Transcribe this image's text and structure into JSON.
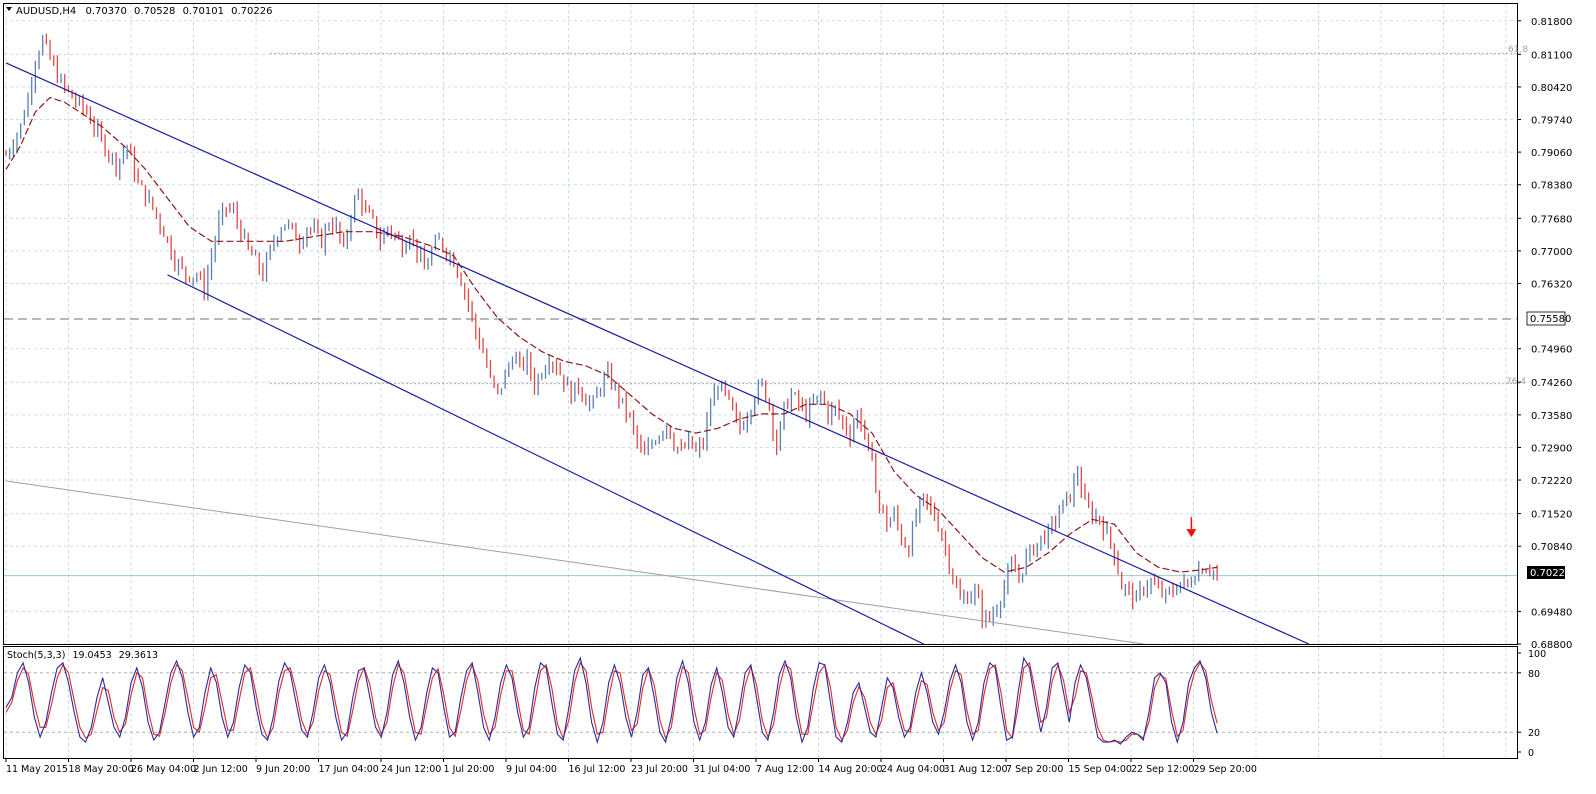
{
  "main_header": {
    "symbol": "AUDUSD,H4",
    "open": "0.70370",
    "high": "0.70528",
    "low": "0.70101",
    "close": "0.70226"
  },
  "stoch_header": {
    "title": "Stoch(5,3,3)",
    "main_value": "19.0453",
    "signal_value": "29.3613"
  },
  "price_axis": {
    "ticks": [
      "0.81800",
      "0.81100",
      "0.80420",
      "0.79740",
      "0.79060",
      "0.78380",
      "0.77680",
      "0.77000",
      "0.76320",
      "0.74960",
      "0.74260",
      "0.73580",
      "0.72900",
      "0.72220",
      "0.71520",
      "0.70840",
      "0.69480",
      "0.68800"
    ],
    "current_price": "0.70226",
    "level_line_price": "0.75580"
  },
  "stoch_axis": {
    "ticks": [
      "100",
      "80",
      "20",
      "0"
    ]
  },
  "fib_labels": {
    "fib_618": "61.8",
    "fib_764": "76.4"
  },
  "time_axis": {
    "labels": [
      "11 May 2015",
      "18 May 20:00",
      "26 May 04:00",
      "2 Jun 12:00",
      "9 Jun 20:00",
      "17 Jun 04:00",
      "24 Jun 12:00",
      "1 Jul 20:00",
      "9 Jul 04:00",
      "16 Jul 12:00",
      "23 Jul 20:00",
      "31 Jul 04:00",
      "7 Aug 12:00",
      "14 Aug 20:00",
      "24 Aug 04:00",
      "31 Aug 12:00",
      "7 Sep 20:00",
      "15 Sep 04:00",
      "22 Sep 12:00",
      "29 Sep 20:00"
    ]
  },
  "colors": {
    "background": "#ffffff",
    "grid": "#c8dce8",
    "bull_bar": "#5a7fb0",
    "bear_bar": "#e04848",
    "moving_average": "#8b1a1a",
    "channel": "#1a1a9c",
    "support_line": "#a0a0a0",
    "level_line": "#707070",
    "stoch_main": "#2b2b9a",
    "stoch_signal": "#e02828",
    "signal_arrow": "#ee1111"
  },
  "chart_data": {
    "type": "candlestick",
    "symbol": "AUDUSD",
    "timeframe": "H4",
    "ylim": [
      0.688,
      0.8215
    ],
    "grid": true,
    "close_path": [
      [
        0,
        0.79
      ],
      [
        4,
        0.796
      ],
      [
        6,
        0.802
      ],
      [
        8,
        0.81
      ],
      [
        10,
        0.814
      ],
      [
        12,
        0.81
      ],
      [
        15,
        0.805
      ],
      [
        18,
        0.802
      ],
      [
        22,
        0.799
      ],
      [
        26,
        0.793
      ],
      [
        30,
        0.788
      ],
      [
        33,
        0.792
      ],
      [
        36,
        0.784
      ],
      [
        40,
        0.779
      ],
      [
        43,
        0.774
      ],
      [
        46,
        0.768
      ],
      [
        49,
        0.765
      ],
      [
        52,
        0.765
      ],
      [
        54,
        0.762
      ],
      [
        56,
        0.769
      ],
      [
        58,
        0.776
      ],
      [
        60,
        0.779
      ],
      [
        62,
        0.778
      ],
      [
        64,
        0.774
      ],
      [
        66,
        0.77
      ],
      [
        68,
        0.768
      ],
      [
        70,
        0.765
      ],
      [
        72,
        0.77
      ],
      [
        74,
        0.774
      ],
      [
        76,
        0.776
      ],
      [
        78,
        0.774
      ],
      [
        80,
        0.772
      ],
      [
        82,
        0.775
      ],
      [
        84,
        0.774
      ],
      [
        86,
        0.772
      ],
      [
        88,
        0.776
      ],
      [
        90,
        0.775
      ],
      [
        92,
        0.77
      ],
      [
        94,
        0.778
      ],
      [
        96,
        0.782
      ],
      [
        98,
        0.778
      ],
      [
        100,
        0.776
      ],
      [
        102,
        0.772
      ],
      [
        104,
        0.775
      ],
      [
        106,
        0.773
      ],
      [
        108,
        0.771
      ],
      [
        110,
        0.774
      ],
      [
        112,
        0.77
      ],
      [
        114,
        0.766
      ],
      [
        116,
        0.77
      ],
      [
        118,
        0.772
      ],
      [
        120,
        0.77
      ],
      [
        122,
        0.768
      ],
      [
        124,
        0.764
      ],
      [
        126,
        0.759
      ],
      [
        128,
        0.753
      ],
      [
        130,
        0.749
      ],
      [
        132,
        0.743
      ],
      [
        134,
        0.74
      ],
      [
        136,
        0.744
      ],
      [
        138,
        0.748
      ],
      [
        140,
        0.746
      ],
      [
        142,
        0.747
      ],
      [
        144,
        0.742
      ],
      [
        146,
        0.745
      ],
      [
        148,
        0.748
      ],
      [
        150,
        0.746
      ],
      [
        152,
        0.743
      ],
      [
        154,
        0.74
      ],
      [
        156,
        0.742
      ],
      [
        158,
        0.739
      ],
      [
        160,
        0.738
      ],
      [
        162,
        0.742
      ],
      [
        164,
        0.744
      ],
      [
        166,
        0.741
      ],
      [
        168,
        0.738
      ],
      [
        170,
        0.735
      ],
      [
        172,
        0.73
      ],
      [
        174,
        0.727
      ],
      [
        176,
        0.73
      ],
      [
        178,
        0.732
      ],
      [
        180,
        0.734
      ],
      [
        182,
        0.73
      ],
      [
        184,
        0.728
      ],
      [
        186,
        0.73
      ],
      [
        188,
        0.728
      ],
      [
        190,
        0.73
      ],
      [
        192,
        0.738
      ],
      [
        194,
        0.742
      ],
      [
        196,
        0.74
      ],
      [
        198,
        0.736
      ],
      [
        200,
        0.733
      ],
      [
        202,
        0.736
      ],
      [
        204,
        0.74
      ],
      [
        206,
        0.742
      ],
      [
        208,
        0.738
      ],
      [
        210,
        0.729
      ],
      [
        212,
        0.737
      ],
      [
        214,
        0.74
      ],
      [
        216,
        0.738
      ],
      [
        218,
        0.736
      ],
      [
        220,
        0.738
      ],
      [
        222,
        0.74
      ],
      [
        224,
        0.736
      ],
      [
        226,
        0.737
      ],
      [
        228,
        0.734
      ],
      [
        230,
        0.732
      ],
      [
        232,
        0.736
      ],
      [
        234,
        0.732
      ],
      [
        236,
        0.725
      ],
      [
        238,
        0.717
      ],
      [
        240,
        0.713
      ],
      [
        242,
        0.715
      ],
      [
        244,
        0.71
      ],
      [
        246,
        0.708
      ],
      [
        248,
        0.715
      ],
      [
        250,
        0.718
      ],
      [
        252,
        0.716
      ],
      [
        254,
        0.713
      ],
      [
        256,
        0.708
      ],
      [
        258,
        0.702
      ],
      [
        260,
        0.697
      ],
      [
        262,
        0.698
      ],
      [
        264,
        0.699
      ],
      [
        266,
        0.694
      ],
      [
        268,
        0.693
      ],
      [
        270,
        0.696
      ],
      [
        272,
        0.7
      ],
      [
        274,
        0.704
      ],
      [
        276,
        0.702
      ],
      [
        278,
        0.706
      ],
      [
        280,
        0.708
      ],
      [
        282,
        0.71
      ],
      [
        284,
        0.711
      ],
      [
        286,
        0.714
      ],
      [
        288,
        0.717
      ],
      [
        290,
        0.719
      ],
      [
        292,
        0.724
      ],
      [
        294,
        0.717
      ],
      [
        296,
        0.715
      ],
      [
        298,
        0.714
      ],
      [
        300,
        0.711
      ],
      [
        302,
        0.707
      ],
      [
        304,
        0.7
      ],
      [
        306,
        0.699
      ],
      [
        308,
        0.697
      ],
      [
        310,
        0.7
      ],
      [
        312,
        0.701
      ],
      [
        314,
        0.699
      ],
      [
        316,
        0.698
      ],
      [
        318,
        0.699
      ],
      [
        320,
        0.701
      ],
      [
        322,
        0.7
      ],
      [
        324,
        0.703
      ],
      [
        326,
        0.704
      ],
      [
        328,
        0.704
      ],
      [
        330,
        0.7022
      ]
    ],
    "moving_average_path": [
      [
        0,
        0.787
      ],
      [
        4,
        0.792
      ],
      [
        8,
        0.799
      ],
      [
        12,
        0.802
      ],
      [
        16,
        0.801
      ],
      [
        20,
        0.799
      ],
      [
        26,
        0.796
      ],
      [
        32,
        0.792
      ],
      [
        38,
        0.787
      ],
      [
        44,
        0.781
      ],
      [
        50,
        0.775
      ],
      [
        56,
        0.772
      ],
      [
        62,
        0.772
      ],
      [
        68,
        0.772
      ],
      [
        76,
        0.772
      ],
      [
        84,
        0.773
      ],
      [
        92,
        0.774
      ],
      [
        100,
        0.774
      ],
      [
        108,
        0.773
      ],
      [
        116,
        0.771
      ],
      [
        122,
        0.769
      ],
      [
        128,
        0.762
      ],
      [
        134,
        0.756
      ],
      [
        140,
        0.752
      ],
      [
        146,
        0.749
      ],
      [
        152,
        0.747
      ],
      [
        158,
        0.746
      ],
      [
        164,
        0.744
      ],
      [
        170,
        0.74
      ],
      [
        176,
        0.736
      ],
      [
        182,
        0.733
      ],
      [
        188,
        0.732
      ],
      [
        194,
        0.733
      ],
      [
        200,
        0.735
      ],
      [
        206,
        0.736
      ],
      [
        212,
        0.736
      ],
      [
        218,
        0.738
      ],
      [
        224,
        0.738
      ],
      [
        230,
        0.736
      ],
      [
        236,
        0.732
      ],
      [
        242,
        0.724
      ],
      [
        248,
        0.719
      ],
      [
        254,
        0.716
      ],
      [
        260,
        0.711
      ],
      [
        266,
        0.706
      ],
      [
        272,
        0.703
      ],
      [
        278,
        0.704
      ],
      [
        284,
        0.707
      ],
      [
        290,
        0.711
      ],
      [
        296,
        0.714
      ],
      [
        302,
        0.713
      ],
      [
        308,
        0.707
      ],
      [
        314,
        0.704
      ],
      [
        320,
        0.703
      ],
      [
        326,
        0.7035
      ],
      [
        330,
        0.704
      ]
    ],
    "channel_upper": {
      "start": {
        "bar": 0,
        "price": 0.8092
      },
      "end": {
        "bar": 355,
        "price": 0.688
      }
    },
    "channel_lower": {
      "start": {
        "bar": 44,
        "price": 0.765
      },
      "end": {
        "bar": 250,
        "price": 0.688
      }
    },
    "support_line": {
      "start": {
        "bar": 0,
        "price": 0.722
      },
      "end": {
        "bar": 310,
        "price": 0.688
      }
    },
    "horizontal_level": 0.7558,
    "fib_618_level": 0.8112,
    "fib_764_level": 0.7423,
    "sell_arrow": {
      "bar": 323,
      "price": 0.7082
    },
    "stochastic": {
      "params": "5,3,3",
      "ylim": [
        0,
        100
      ],
      "levels": [
        20,
        80
      ],
      "main_last": 19.0453,
      "signal_last": 29.3613,
      "main": [
        45,
        55,
        80,
        90,
        70,
        35,
        15,
        30,
        60,
        85,
        90,
        70,
        40,
        15,
        10,
        25,
        55,
        75,
        50,
        25,
        15,
        35,
        70,
        85,
        65,
        30,
        12,
        20,
        50,
        80,
        92,
        75,
        40,
        15,
        25,
        60,
        85,
        70,
        35,
        15,
        30,
        65,
        88,
        80,
        45,
        18,
        12,
        35,
        72,
        90,
        80,
        50,
        22,
        15,
        40,
        75,
        88,
        70,
        35,
        12,
        20,
        55,
        82,
        85,
        55,
        25,
        15,
        40,
        78,
        92,
        70,
        35,
        12,
        25,
        60,
        85,
        80,
        45,
        15,
        20,
        55,
        82,
        90,
        60,
        25,
        12,
        35,
        70,
        88,
        75,
        40,
        15,
        25,
        65,
        90,
        85,
        50,
        18,
        12,
        45,
        82,
        95,
        70,
        30,
        10,
        30,
        70,
        88,
        70,
        35,
        15,
        40,
        78,
        85,
        55,
        20,
        10,
        35,
        75,
        92,
        70,
        30,
        12,
        30,
        68,
        85,
        60,
        25,
        15,
        45,
        80,
        88,
        55,
        20,
        12,
        40,
        78,
        92,
        75,
        35,
        10,
        25,
        65,
        90,
        88,
        50,
        15,
        10,
        30,
        60,
        70,
        45,
        20,
        15,
        45,
        75,
        65,
        35,
        15,
        25,
        60,
        80,
        60,
        30,
        18,
        40,
        72,
        88,
        70,
        30,
        12,
        30,
        70,
        90,
        85,
        45,
        12,
        15,
        60,
        95,
        85,
        50,
        20,
        45,
        85,
        90,
        60,
        30,
        70,
        88,
        75,
        45,
        15,
        10,
        10,
        12,
        8,
        15,
        20,
        18,
        12,
        40,
        75,
        80,
        70,
        30,
        10,
        30,
        70,
        85,
        92,
        75,
        40,
        19
      ],
      "signal": [
        40,
        50,
        72,
        85,
        78,
        48,
        25,
        25,
        48,
        75,
        88,
        80,
        52,
        25,
        14,
        18,
        42,
        65,
        62,
        35,
        20,
        28,
        58,
        80,
        75,
        42,
        18,
        16,
        40,
        70,
        88,
        82,
        55,
        25,
        20,
        45,
        75,
        78,
        50,
        22,
        22,
        52,
        80,
        85,
        58,
        28,
        14,
        25,
        60,
        82,
        85,
        62,
        32,
        18,
        30,
        62,
        82,
        78,
        48,
        20,
        16,
        42,
        72,
        85,
        68,
        35,
        18,
        30,
        65,
        88,
        80,
        48,
        20,
        18,
        48,
        75,
        84,
        58,
        25,
        16,
        42,
        72,
        88,
        72,
        38,
        18,
        25,
        58,
        82,
        82,
        52,
        22,
        18,
        50,
        82,
        88,
        65,
        28,
        14,
        32,
        70,
        90,
        82,
        45,
        18,
        20,
        55,
        82,
        80,
        48,
        22,
        28,
        65,
        84,
        68,
        32,
        14,
        25,
        62,
        86,
        80,
        45,
        18,
        22,
        55,
        80,
        72,
        38,
        18,
        32,
        68,
        86,
        68,
        32,
        15,
        28,
        65,
        88,
        84,
        48,
        18,
        18,
        50,
        80,
        88,
        65,
        25,
        12,
        22,
        50,
        66,
        55,
        30,
        18,
        32,
        65,
        70,
        45,
        22,
        20,
        48,
        72,
        68,
        40,
        22,
        30,
        62,
        82,
        78,
        42,
        18,
        22,
        58,
        84,
        88,
        60,
        22,
        14,
        45,
        85,
        90,
        62,
        30,
        35,
        72,
        88,
        72,
        40,
        55,
        82,
        80,
        55,
        25,
        12,
        10,
        11,
        10,
        12,
        18,
        18,
        14,
        30,
        65,
        78,
        74,
        42,
        16,
        22,
        58,
        80,
        90,
        82,
        52,
        29
      ]
    }
  }
}
